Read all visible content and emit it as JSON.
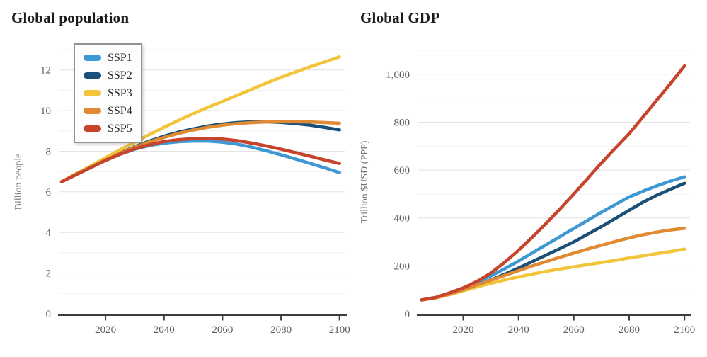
{
  "page_background": "#ffffff",
  "legend": {
    "items": [
      {
        "label": "SSP1",
        "color": "#3d98d3"
      },
      {
        "label": "SSP2",
        "color": "#1a5078"
      },
      {
        "label": "SSP3",
        "color": "#f2c53d"
      },
      {
        "label": "SSP4",
        "color": "#e08b33"
      },
      {
        "label": "SSP5",
        "color": "#c8432c"
      }
    ]
  },
  "chart_data": [
    {
      "type": "line",
      "title": "Global population",
      "xlabel": "",
      "ylabel": "Billion people",
      "xlim": [
        2004,
        2102
      ],
      "ylim": [
        0,
        13
      ],
      "grid_step_y": 1,
      "grid_on": true,
      "legend_position": "top-left",
      "x_ticks": [
        2020,
        2040,
        2060,
        2080,
        2100
      ],
      "x_tick_labels": [
        "2020",
        "2040",
        "2060",
        "2080",
        "2100"
      ],
      "y_ticks": [
        0,
        2,
        4,
        6,
        8,
        10,
        12
      ],
      "y_tick_labels": [
        "0",
        "2",
        "4",
        "6",
        "8",
        "10",
        "12"
      ],
      "x": [
        2005,
        2010,
        2015,
        2020,
        2025,
        2030,
        2035,
        2040,
        2045,
        2050,
        2055,
        2060,
        2065,
        2070,
        2075,
        2080,
        2085,
        2090,
        2095,
        2100
      ],
      "series": [
        {
          "name": "SSP1",
          "color": "#3d98d3",
          "values": [
            6.5,
            6.85,
            7.2,
            7.55,
            7.85,
            8.1,
            8.28,
            8.4,
            8.47,
            8.5,
            8.5,
            8.45,
            8.35,
            8.2,
            8.02,
            7.82,
            7.62,
            7.4,
            7.18,
            6.95
          ]
        },
        {
          "name": "SSP2",
          "color": "#1a5078",
          "values": [
            6.5,
            6.87,
            7.22,
            7.58,
            7.92,
            8.22,
            8.5,
            8.74,
            8.94,
            9.1,
            9.24,
            9.34,
            9.41,
            9.45,
            9.45,
            9.42,
            9.36,
            9.28,
            9.17,
            9.05
          ]
        },
        {
          "name": "SSP3",
          "color": "#f2c53d",
          "values": [
            6.5,
            6.9,
            7.28,
            7.68,
            8.08,
            8.45,
            8.82,
            9.18,
            9.52,
            9.85,
            10.16,
            10.45,
            10.75,
            11.05,
            11.35,
            11.64,
            11.9,
            12.16,
            12.4,
            12.64
          ]
        },
        {
          "name": "SSP4",
          "color": "#e08b33",
          "values": [
            6.5,
            6.87,
            7.22,
            7.58,
            7.9,
            8.2,
            8.46,
            8.68,
            8.88,
            9.04,
            9.18,
            9.28,
            9.36,
            9.41,
            9.44,
            9.45,
            9.45,
            9.44,
            9.41,
            9.38
          ]
        },
        {
          "name": "SSP5",
          "color": "#c8432c",
          "values": [
            6.5,
            6.85,
            7.2,
            7.55,
            7.86,
            8.12,
            8.32,
            8.48,
            8.57,
            8.62,
            8.63,
            8.6,
            8.52,
            8.4,
            8.26,
            8.1,
            7.93,
            7.75,
            7.57,
            7.4
          ]
        }
      ]
    },
    {
      "type": "line",
      "title": "Global GDP",
      "xlabel": "",
      "ylabel": "Trillion $USD (PPP)",
      "xlim": [
        2003.5,
        2102
      ],
      "ylim": [
        0,
        1100
      ],
      "grid_step_y": 100,
      "grid_on": true,
      "legend_position": "none",
      "x_ticks": [
        2020,
        2040,
        2060,
        2080,
        2100
      ],
      "x_tick_labels": [
        "2020",
        "2040",
        "2060",
        "2080",
        "2100"
      ],
      "y_ticks": [
        0,
        200,
        400,
        600,
        800,
        1000
      ],
      "y_tick_labels": [
        "0",
        "200",
        "400",
        "600",
        "800",
        "1,000"
      ],
      "x": [
        2005,
        2010,
        2015,
        2020,
        2025,
        2030,
        2035,
        2040,
        2045,
        2050,
        2055,
        2060,
        2065,
        2070,
        2075,
        2080,
        2085,
        2090,
        2095,
        2100
      ],
      "series": [
        {
          "name": "SSP1",
          "color": "#3d98d3",
          "values": [
            58,
            68,
            85,
            105,
            130,
            158,
            188,
            220,
            254,
            288,
            322,
            356,
            390,
            424,
            456,
            488,
            512,
            534,
            554,
            572
          ]
        },
        {
          "name": "SSP2",
          "color": "#1a5078",
          "values": [
            58,
            67,
            82,
            99,
            119,
            141,
            165,
            191,
            218,
            245,
            272,
            300,
            332,
            364,
            398,
            432,
            466,
            495,
            520,
            545
          ]
        },
        {
          "name": "SSP3",
          "color": "#f2c53d",
          "values": [
            58,
            66,
            80,
            96,
            112,
            127,
            141,
            154,
            166,
            177,
            187,
            196,
            205,
            214,
            223,
            233,
            242,
            251,
            260,
            270
          ]
        },
        {
          "name": "SSP4",
          "color": "#e08b33",
          "values": [
            58,
            67,
            82,
            100,
            120,
            140,
            160,
            180,
            200,
            218,
            236,
            253,
            270,
            286,
            302,
            317,
            330,
            341,
            350,
            357
          ]
        },
        {
          "name": "SSP5",
          "color": "#c8432c",
          "values": [
            58,
            68,
            87,
            108,
            135,
            170,
            215,
            265,
            320,
            378,
            438,
            500,
            565,
            630,
            692,
            752,
            822,
            892,
            962,
            1035
          ]
        }
      ]
    }
  ]
}
